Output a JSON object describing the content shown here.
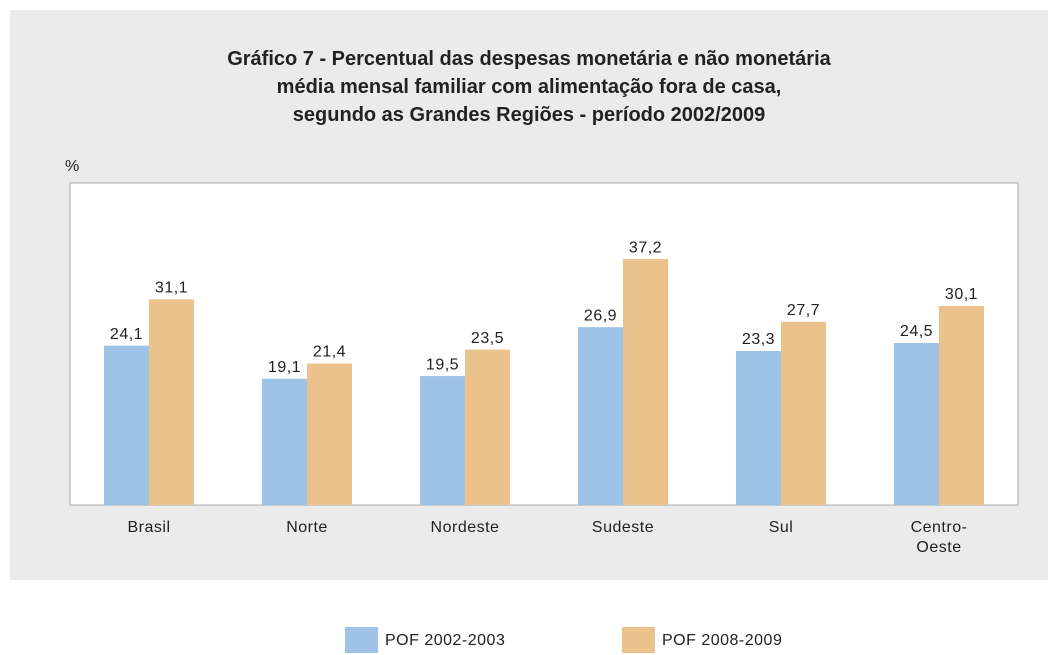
{
  "chart_data": {
    "type": "bar",
    "title": "Gráfico 7 - Percentual das despesas monetária e não monetária\nmédia mensal familiar com alimentação fora de casa,\nsegundo as Grandes Regiões - período 2002/2009",
    "y_label": "%",
    "categories": [
      "Brasil",
      "Norte",
      "Nordeste",
      "Sudeste",
      "Sul",
      "Centro-Oeste"
    ],
    "series": [
      {
        "name": "POF 2002-2003",
        "color": "#9dc3e6",
        "values": [
          24.1,
          19.1,
          19.5,
          26.9,
          23.3,
          24.5
        ],
        "value_labels": [
          "24,1",
          "19,1",
          "19,5",
          "26,9",
          "23,3",
          "24,5"
        ]
      },
      {
        "name": "POF 2008-2009",
        "color": "#ebc28b",
        "values": [
          31.1,
          21.4,
          23.5,
          37.2,
          27.7,
          30.1
        ],
        "value_labels": [
          "31,1",
          "21,4",
          "23,5",
          "37,2",
          "27,7",
          "30,1"
        ]
      }
    ],
    "ylim": [
      0,
      48.7
    ],
    "legend": "bottom"
  }
}
